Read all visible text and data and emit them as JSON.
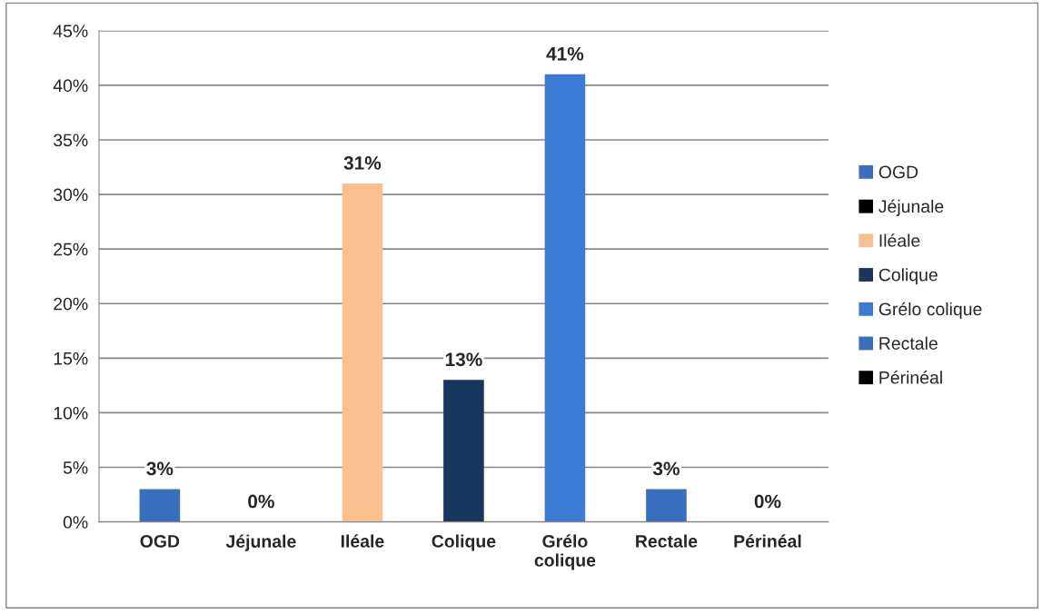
{
  "chart_data": {
    "type": "bar",
    "categories": [
      "OGD",
      "Jéjunale",
      "Iléale",
      "Colique",
      "Grélo colique",
      "Rectale",
      "Périnéal"
    ],
    "series": [
      {
        "name": "OGD",
        "color": "#3a6fc0",
        "values": [
          3,
          null,
          null,
          null,
          null,
          null,
          null
        ],
        "value_labels": [
          "3%",
          null,
          null,
          null,
          null,
          null,
          null
        ]
      },
      {
        "name": "Jéjunale",
        "color": "#000000",
        "values": [
          null,
          0,
          null,
          null,
          null,
          null,
          null
        ],
        "value_labels": [
          null,
          "0%",
          null,
          null,
          null,
          null,
          null
        ]
      },
      {
        "name": "Iléale",
        "color": "#fac08f",
        "values": [
          null,
          null,
          31,
          null,
          null,
          null,
          null
        ],
        "value_labels": [
          null,
          null,
          "31%",
          null,
          null,
          null,
          null
        ]
      },
      {
        "name": "Colique",
        "color": "#17375e",
        "values": [
          null,
          null,
          null,
          13,
          null,
          null,
          null
        ],
        "value_labels": [
          null,
          null,
          null,
          "13%",
          null,
          null,
          null
        ]
      },
      {
        "name": "Grélo colique",
        "color": "#3b7bd4",
        "values": [
          null,
          null,
          null,
          null,
          41,
          null,
          null
        ],
        "value_labels": [
          null,
          null,
          null,
          null,
          "41%",
          null,
          null
        ]
      },
      {
        "name": "Rectale",
        "color": "#3a6fc0",
        "values": [
          null,
          null,
          null,
          null,
          null,
          3,
          null
        ],
        "value_labels": [
          null,
          null,
          null,
          null,
          null,
          "3%",
          null
        ]
      },
      {
        "name": "Périnéal",
        "color": "#000000",
        "values": [
          null,
          null,
          null,
          null,
          null,
          null,
          0
        ],
        "value_labels": [
          null,
          null,
          null,
          null,
          null,
          null,
          "0%"
        ]
      }
    ],
    "ylim": [
      0,
      45
    ],
    "yticks": [
      {
        "value": 0,
        "label": "0%"
      },
      {
        "value": 5,
        "label": "5%"
      },
      {
        "value": 10,
        "label": "10%"
      },
      {
        "value": 15,
        "label": "15%"
      },
      {
        "value": 20,
        "label": "20%"
      },
      {
        "value": 25,
        "label": "25%"
      },
      {
        "value": 30,
        "label": "30%"
      },
      {
        "value": 35,
        "label": "35%"
      },
      {
        "value": 40,
        "label": "40%"
      },
      {
        "value": 45,
        "label": "45%"
      }
    ],
    "grid": "y",
    "legend": "right"
  }
}
